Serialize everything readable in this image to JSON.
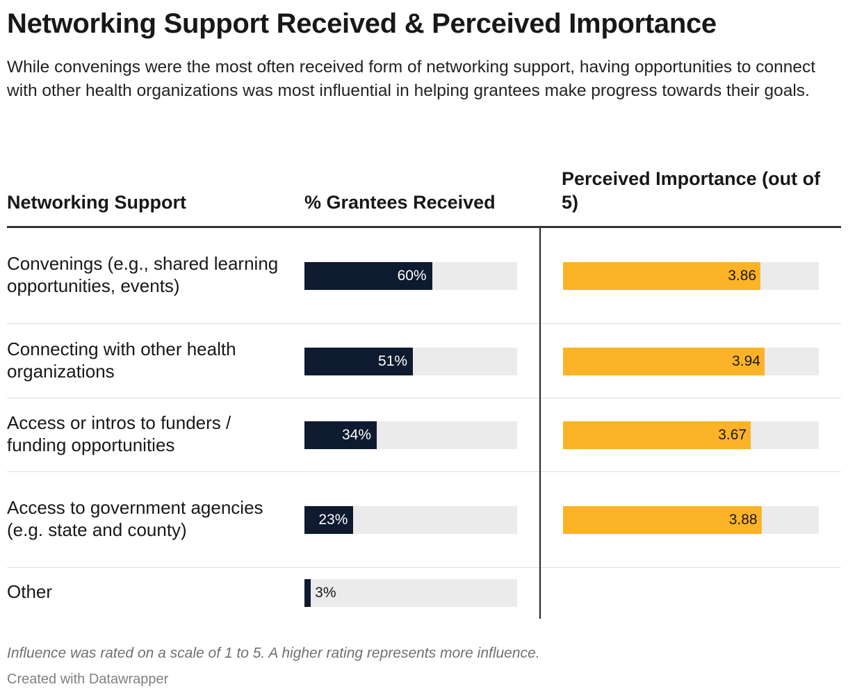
{
  "chart_data": {
    "type": "table",
    "title": "Networking Support Received & Perceived Importance",
    "subtitle": "While convenings were the most often received form of networking support, having opportunities to connect with other health organizations was most influential in helping grantees make progress towards their goals.",
    "columns": {
      "label": "Networking Support",
      "received": "% Grantees Received",
      "importance": "Perceived Importance (out of 5)"
    },
    "received_range": [
      0,
      100
    ],
    "importance_range": [
      0,
      5
    ],
    "colors": {
      "received": "#0e1a2f",
      "importance": "#fdb327",
      "track": "#ebebeb"
    },
    "rows": [
      {
        "label": "Convenings (e.g., shared learning opportunities, events)",
        "received": 60,
        "received_label": "60%",
        "importance": 3.86,
        "importance_label": "3.86"
      },
      {
        "label": "Connecting with other health organizations",
        "received": 51,
        "received_label": "51%",
        "importance": 3.94,
        "importance_label": "3.94"
      },
      {
        "label": "Access or intros to funders / funding opportunities",
        "received": 34,
        "received_label": "34%",
        "importance": 3.67,
        "importance_label": "3.67"
      },
      {
        "label": "Access to government agencies (e.g. state and county)",
        "received": 23,
        "received_label": "23%",
        "importance": 3.88,
        "importance_label": "3.88"
      },
      {
        "label": "Other",
        "received": 3,
        "received_label": "3%",
        "importance": null,
        "importance_label": ""
      }
    ],
    "notes": "Influence was rated on a scale of 1 to 5. A higher rating represents more influence.",
    "credit": "Created with Datawrapper"
  }
}
